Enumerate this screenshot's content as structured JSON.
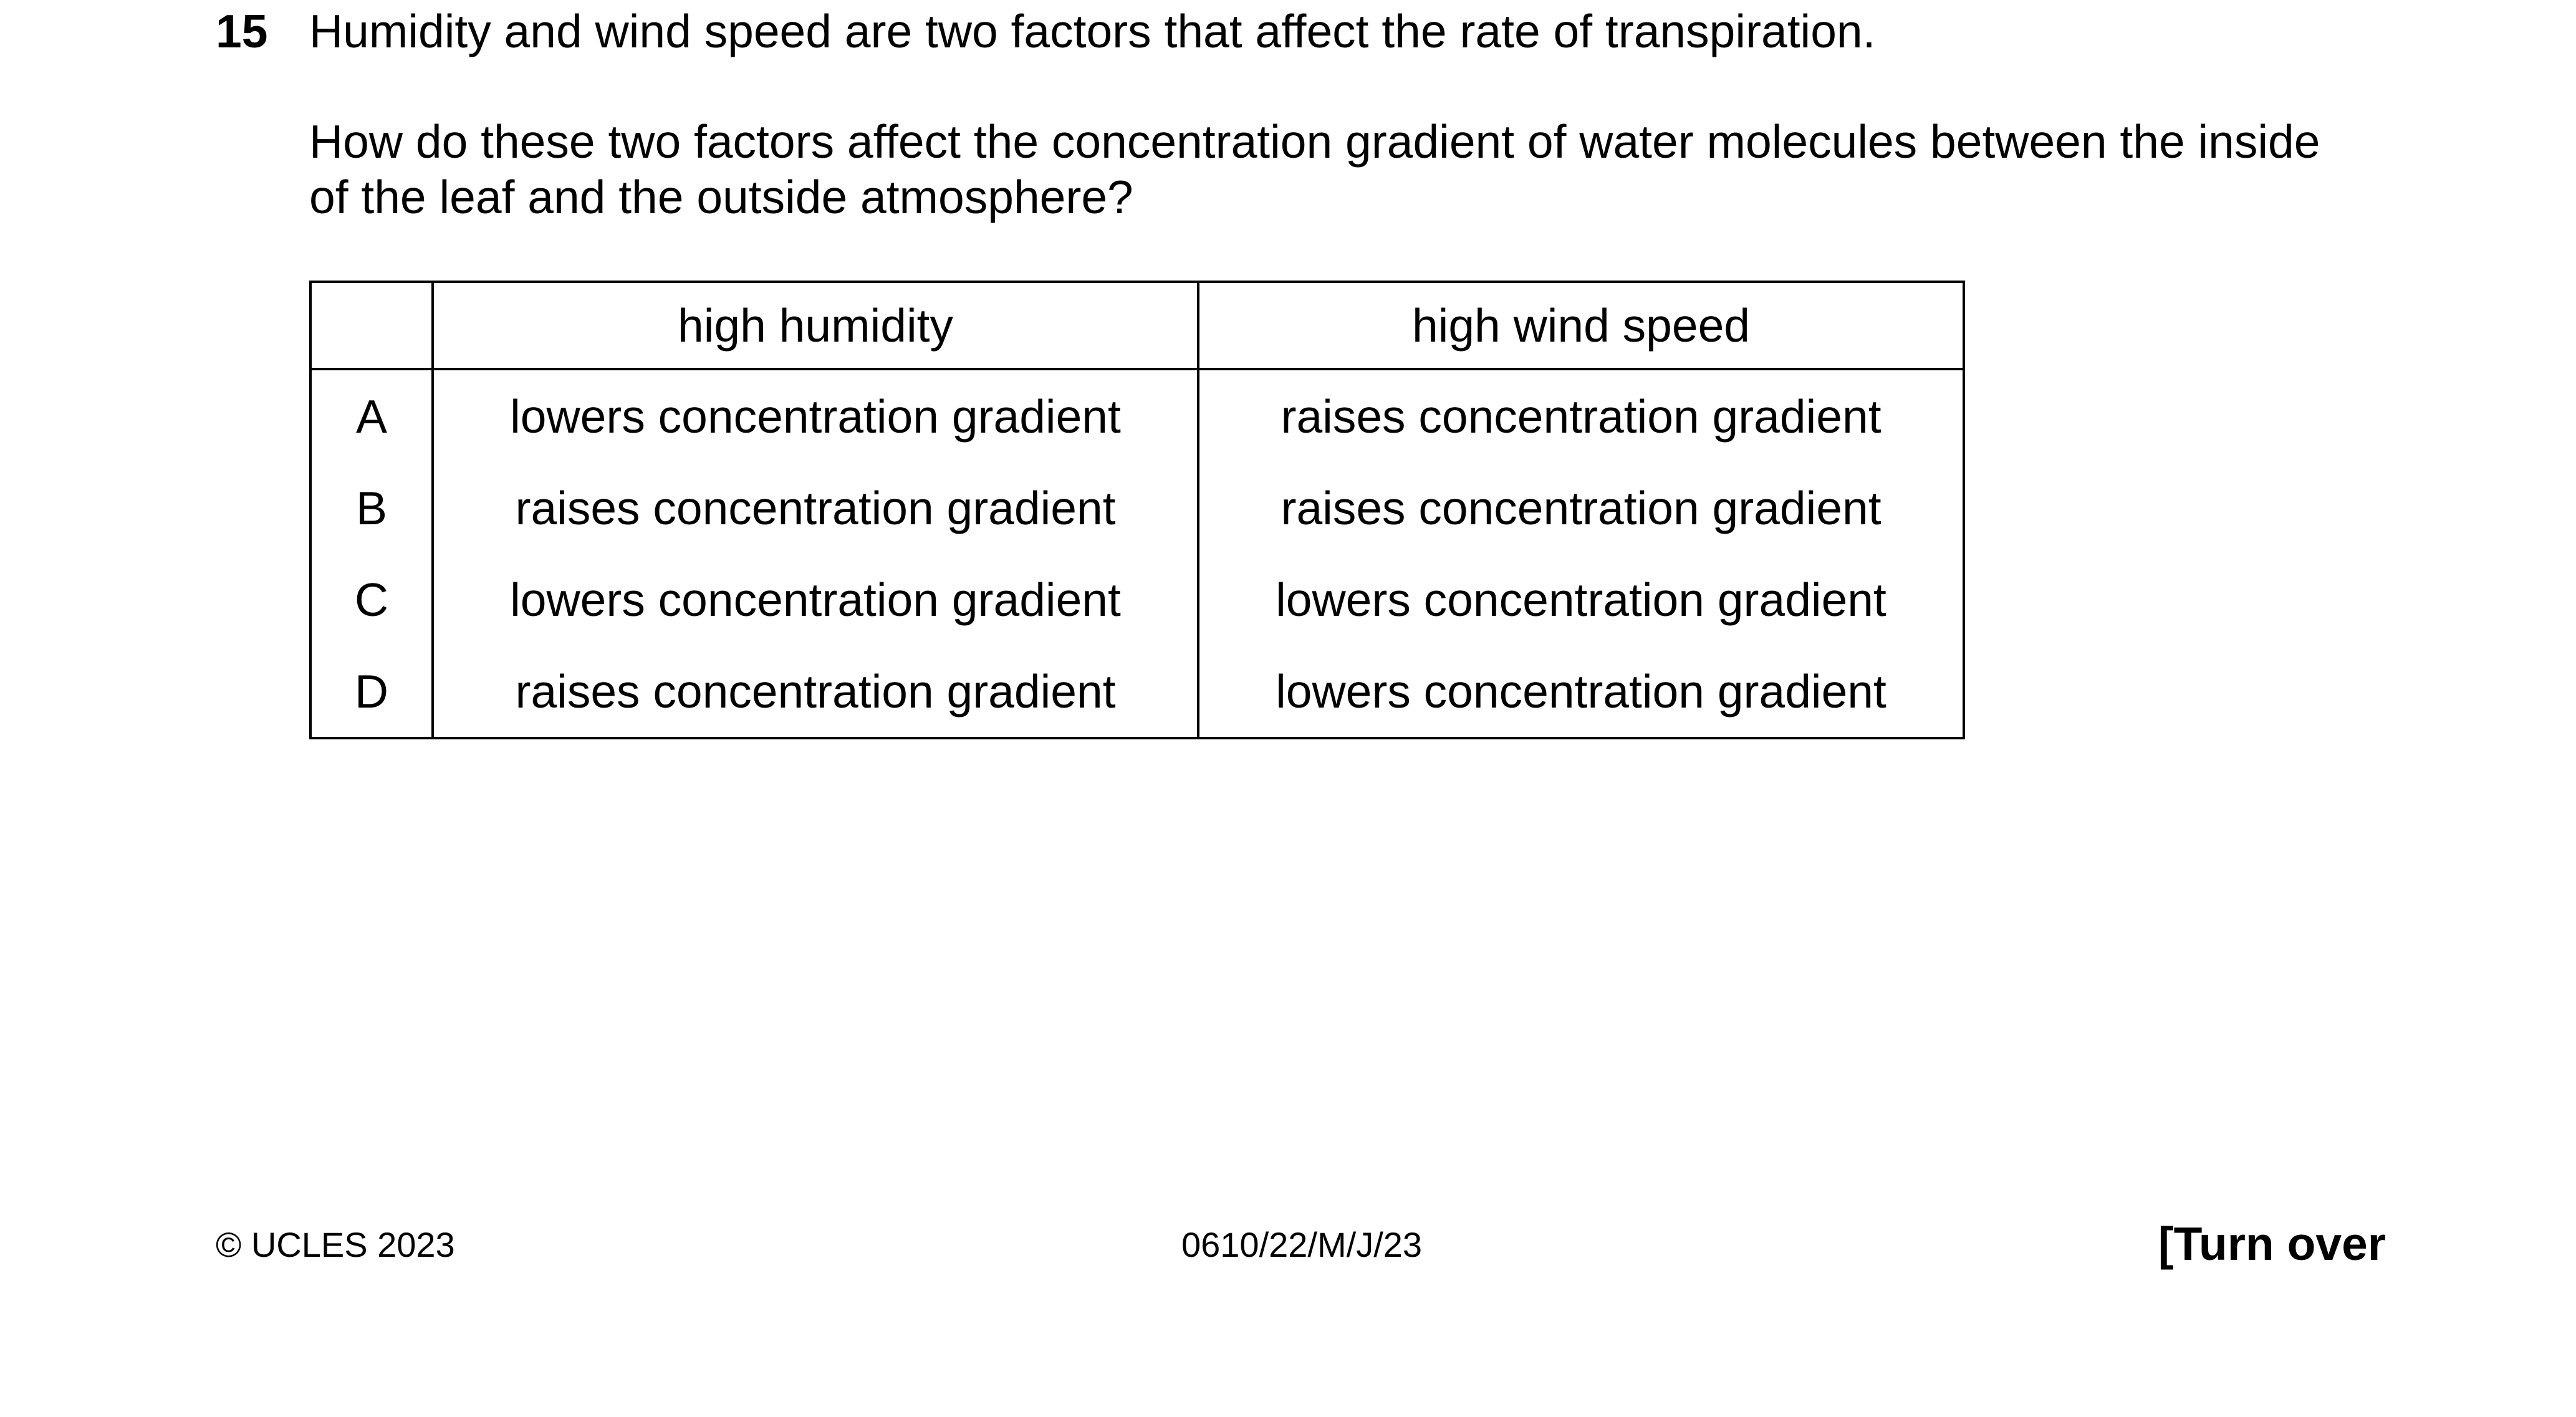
{
  "question": {
    "number": "15",
    "line1": "Humidity and wind speed are two factors that affect the rate of transpiration.",
    "line2": "How do these two factors affect the concentration gradient of water molecules between the inside",
    "line3": "of the leaf and the outside atmosphere?"
  },
  "table": {
    "headers": [
      "",
      "high humidity",
      "high wind speed"
    ],
    "rows": [
      {
        "key": "A",
        "humidity": "lowers concentration gradient",
        "wind": "raises concentration gradient"
      },
      {
        "key": "B",
        "humidity": "raises concentration gradient",
        "wind": "raises concentration gradient"
      },
      {
        "key": "C",
        "humidity": "lowers concentration gradient",
        "wind": "lowers concentration gradient"
      },
      {
        "key": "D",
        "humidity": "raises concentration gradient",
        "wind": "lowers concentration gradient"
      }
    ]
  },
  "footer": {
    "copyright": "© UCLES 2023",
    "code": "0610/22/M/J/23",
    "turn_over": "[Turn over"
  }
}
